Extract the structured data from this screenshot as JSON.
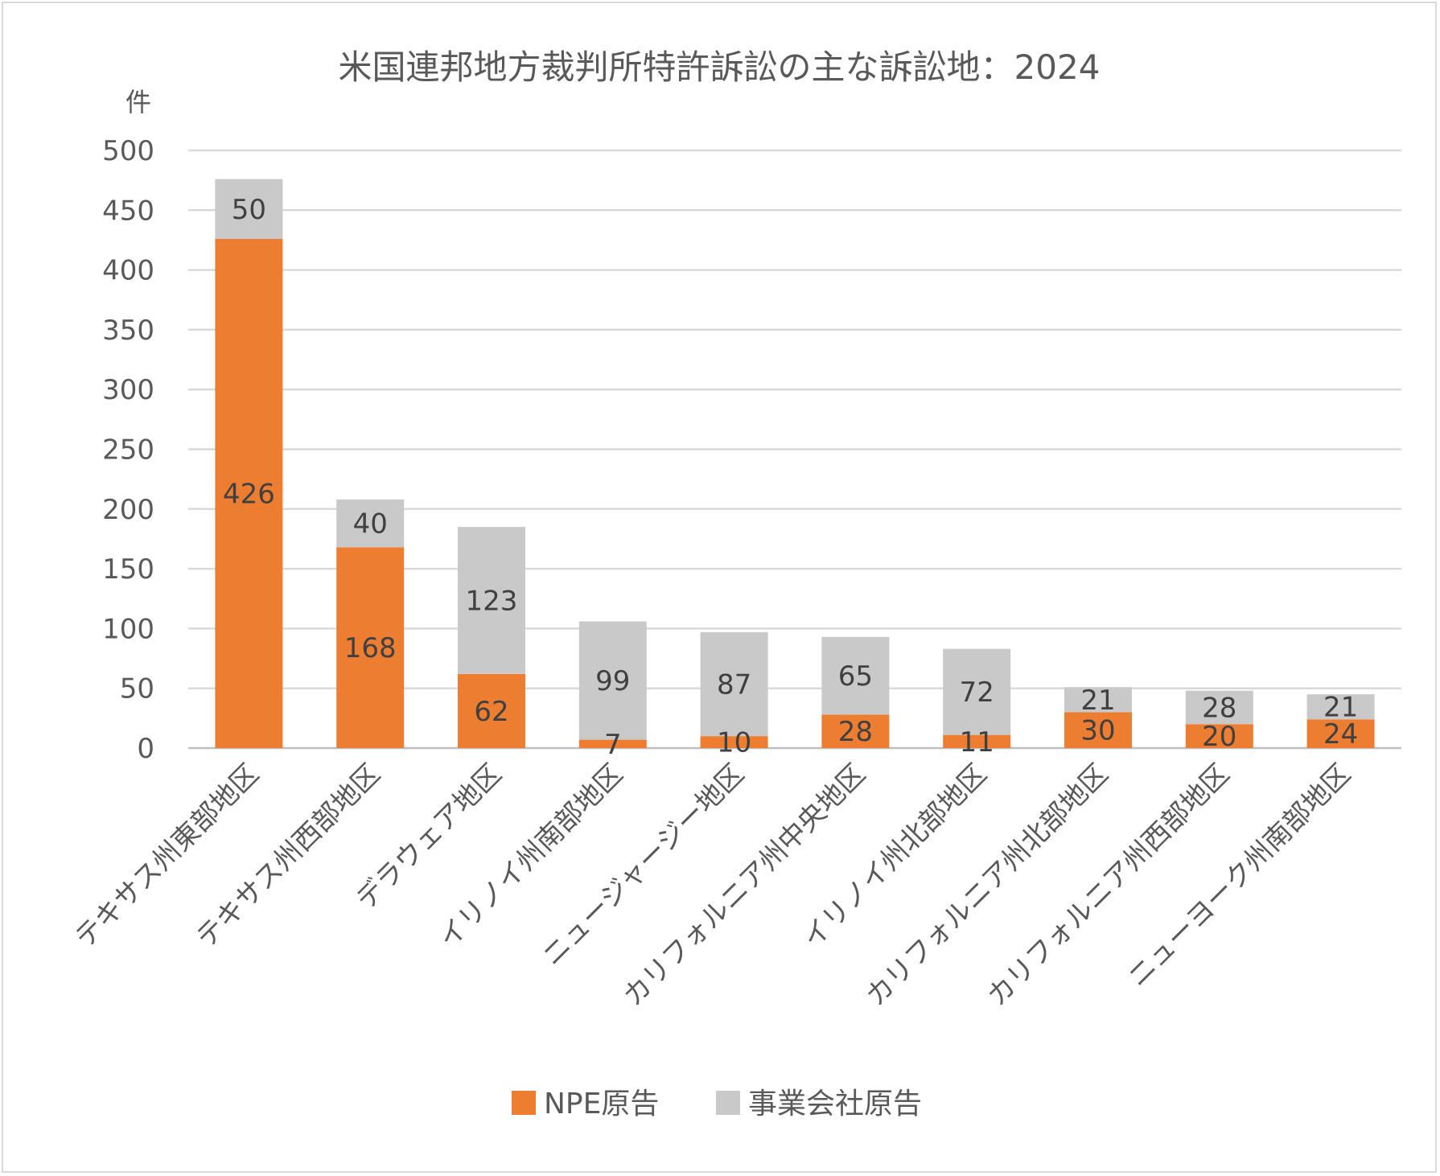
{
  "chart_data": {
    "type": "bar",
    "stacked": true,
    "title": "米国連邦地方裁判所特許訴訟の主な訴訟地：2024",
    "ylabel": "件",
    "ylim": [
      0,
      500
    ],
    "yticks": [
      0,
      50,
      100,
      150,
      200,
      250,
      300,
      350,
      400,
      450,
      500
    ],
    "grid": true,
    "legend_position": "bottom",
    "categories": [
      "テキサス州東部地区",
      "テキサス州西部地区",
      "デラウェア地区",
      "イリノイ州南部地区",
      "ニュージャージー地区",
      "カリフォルニア州中央地区",
      "イリノイ州北部地区",
      "カリフォルニア州北部地区",
      "カリフォルニア州西部地区",
      "ニューヨーク州南部地区"
    ],
    "series": [
      {
        "name": "NPE原告",
        "color": "#ed7d31",
        "values": [
          426,
          168,
          62,
          7,
          10,
          28,
          11,
          30,
          20,
          24
        ]
      },
      {
        "name": "事業会社原告",
        "color": "#c9c9c9",
        "values": [
          50,
          40,
          123,
          99,
          87,
          65,
          72,
          21,
          28,
          21
        ]
      }
    ]
  }
}
